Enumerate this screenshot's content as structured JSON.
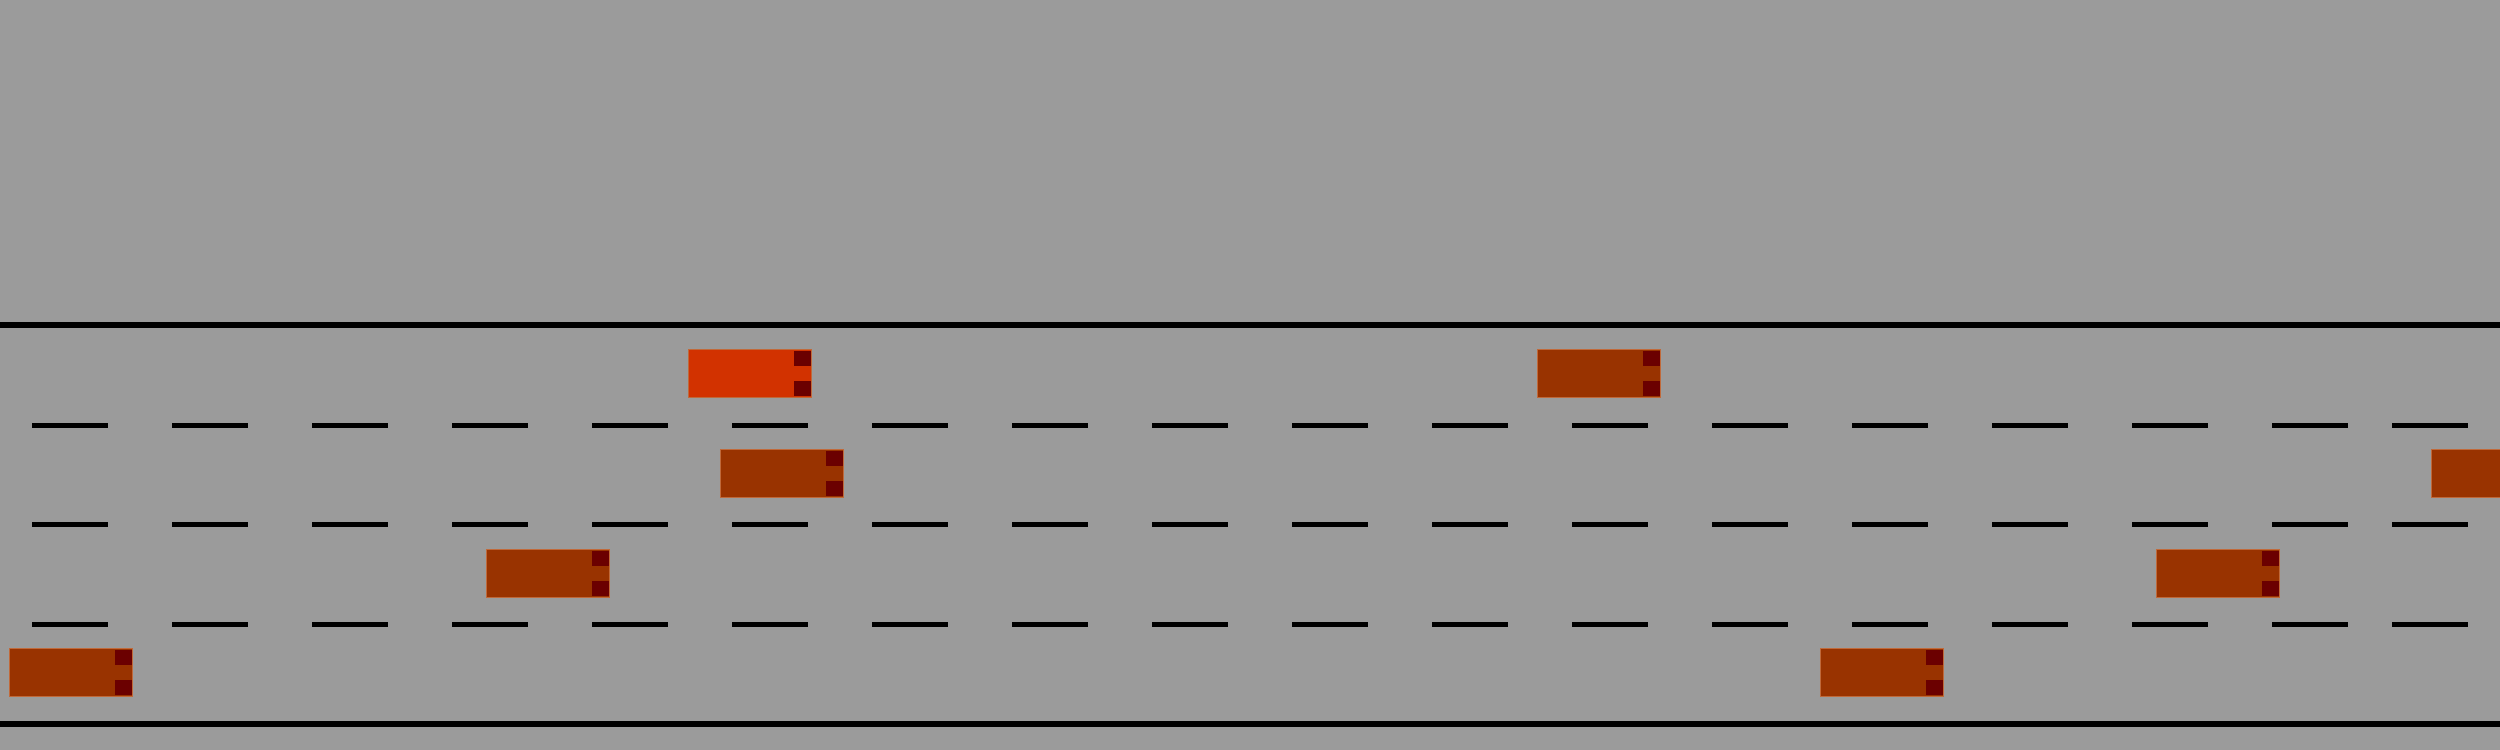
{
  "scene": {
    "type": "highway-driving-simulation",
    "background_color": "#9b9b9b",
    "road_line_color": "#000000",
    "lanes": 4
  },
  "vehicles": [
    {
      "id": "ego",
      "role": "ego",
      "lane": 1,
      "color": "#d23200",
      "light_color": "#6b0000"
    },
    {
      "id": "car-1",
      "role": "other",
      "lane": 1,
      "color": "#993300",
      "light_color": "#6b0000"
    },
    {
      "id": "car-2",
      "role": "other",
      "lane": 2,
      "color": "#993300",
      "light_color": "#6b0000"
    },
    {
      "id": "car-3",
      "role": "other",
      "lane": 2,
      "color": "#993300",
      "light_color": "#6b0000"
    },
    {
      "id": "car-4",
      "role": "other",
      "lane": 3,
      "color": "#993300",
      "light_color": "#6b0000"
    },
    {
      "id": "car-5",
      "role": "other",
      "lane": 3,
      "color": "#993300",
      "light_color": "#6b0000"
    },
    {
      "id": "car-6",
      "role": "other",
      "lane": 4,
      "color": "#993300",
      "light_color": "#6b0000"
    },
    {
      "id": "car-7",
      "role": "other",
      "lane": 4,
      "color": "#993300",
      "light_color": "#6b0000"
    }
  ]
}
